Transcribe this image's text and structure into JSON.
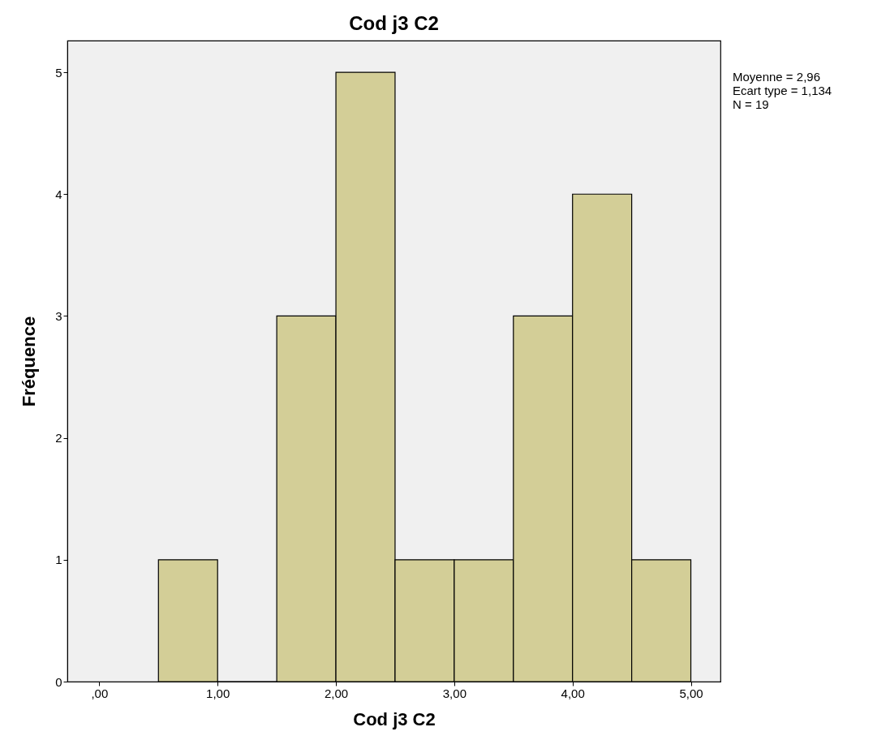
{
  "chart_data": {
    "type": "histogram",
    "title": "Cod  j3 C2",
    "xlabel": "Cod  j3 C2",
    "ylabel": "Fréquence",
    "bins": [
      0.5,
      1.0,
      1.5,
      2.0,
      2.5,
      3.0,
      3.5,
      4.0,
      4.5,
      5.0
    ],
    "values": [
      1,
      0,
      3,
      5,
      1,
      1,
      3,
      4,
      1
    ],
    "color": "#d3ce97",
    "xlim": [
      -0.27,
      5.25
    ],
    "ylim": [
      0,
      5.26
    ],
    "xticks": [
      {
        "value": 0,
        "label": ",00"
      },
      {
        "value": 1,
        "label": "1,00"
      },
      {
        "value": 2,
        "label": "2,00"
      },
      {
        "value": 3,
        "label": "3,00"
      },
      {
        "value": 4,
        "label": "4,00"
      },
      {
        "value": 5,
        "label": "5,00"
      }
    ],
    "yticks": [
      0,
      1,
      2,
      3,
      4,
      5
    ],
    "grid": false,
    "annotations": [
      "Moyenne = 2,96",
      "Ecart type = 1,134",
      "N = 19"
    ]
  }
}
